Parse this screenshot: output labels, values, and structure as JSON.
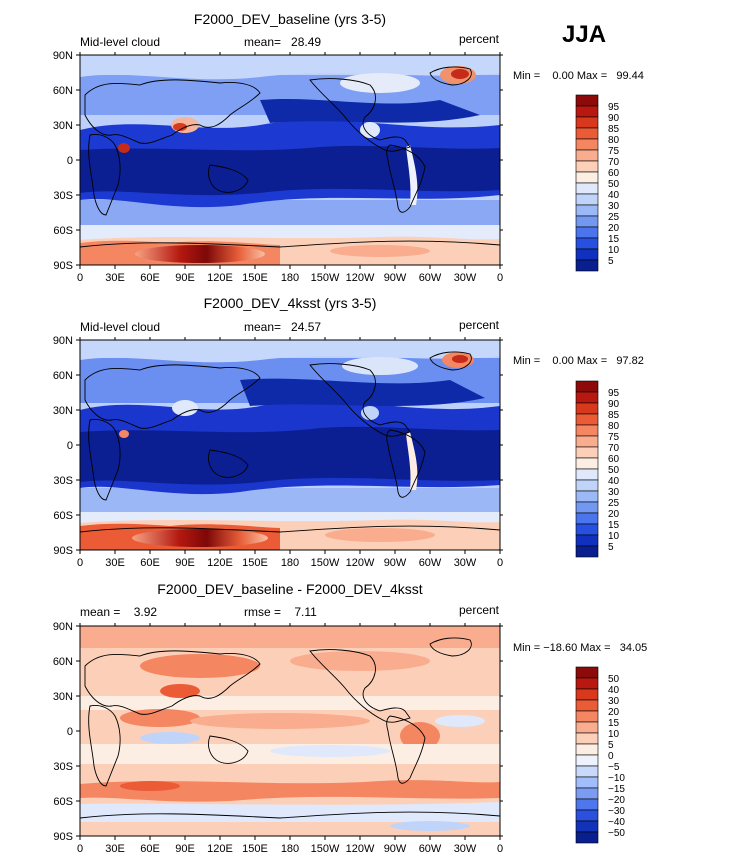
{
  "season_label": "JJA",
  "x_ticks": [
    "0",
    "30E",
    "60E",
    "90E",
    "120E",
    "150E",
    "180",
    "150W",
    "120W",
    "90W",
    "60W",
    "30W",
    "0"
  ],
  "y_ticks": [
    "90N",
    "60N",
    "30N",
    "0",
    "30S",
    "60S",
    "90S"
  ],
  "panels": [
    {
      "title": "F2000_DEV_baseline (yrs 3-5)",
      "left_label": "Mid-level cloud",
      "mean_text": "mean=   28.49",
      "right_label": "percent",
      "minmax_text": "Min =    0.00 Max =   99.44",
      "colorbar_levels": [
        "95",
        "90",
        "85",
        "80",
        "75",
        "70",
        "60",
        "50",
        "40",
        "30",
        "25",
        "20",
        "15",
        "10",
        "5"
      ],
      "colorbar_colors": [
        "#8c0a0a",
        "#b8180f",
        "#d8381c",
        "#ea5b36",
        "#f48662",
        "#f9ad8e",
        "#fcd0b8",
        "#fdeee3",
        "#dfe9fb",
        "#c0d4fa",
        "#9bb9f7",
        "#7298f2",
        "#4b75ec",
        "#2650e0",
        "#1030c0",
        "#0a1f8f"
      ]
    },
    {
      "title": "F2000_DEV_4ksst (yrs 3-5)",
      "left_label": "Mid-level cloud",
      "mean_text": "mean=   24.57",
      "right_label": "percent",
      "minmax_text": "Min =    0.00 Max =   97.82",
      "colorbar_levels": [
        "95",
        "90",
        "85",
        "80",
        "75",
        "70",
        "60",
        "50",
        "40",
        "30",
        "25",
        "20",
        "15",
        "10",
        "5"
      ],
      "colorbar_colors": [
        "#8c0a0a",
        "#b8180f",
        "#d8381c",
        "#ea5b36",
        "#f48662",
        "#f9ad8e",
        "#fcd0b8",
        "#fdeee3",
        "#dfe9fb",
        "#c0d4fa",
        "#9bb9f7",
        "#7298f2",
        "#4b75ec",
        "#2650e0",
        "#1030c0",
        "#0a1f8f"
      ]
    },
    {
      "title": "F2000_DEV_baseline - F2000_DEV_4ksst",
      "left_label": "mean =    3.92",
      "mean_text": "rmse =    7.11",
      "right_label": "percent",
      "minmax_text": "Min = −18.60 Max =   34.05",
      "colorbar_levels": [
        "50",
        "40",
        "30",
        "20",
        "15",
        "10",
        "5",
        "0",
        "−5",
        "−10",
        "−15",
        "−20",
        "−30",
        "−40",
        "−50"
      ],
      "colorbar_colors": [
        "#8c0a0a",
        "#b8180f",
        "#d8381c",
        "#ea5b36",
        "#f48662",
        "#f9ad8e",
        "#fcd0b8",
        "#fdeee3",
        "#eef2fd",
        "#c8d9fb",
        "#a2befa",
        "#7a9cf3",
        "#4f77ec",
        "#2a50dd",
        "#1232b8",
        "#0a1f8f"
      ]
    }
  ],
  "chart_data": [
    {
      "type": "heatmap",
      "title": "F2000_DEV_baseline (yrs 3-5)",
      "variable": "Mid-level cloud",
      "units": "percent",
      "mean": 28.49,
      "min": 0.0,
      "max": 99.44,
      "xlabel": "",
      "ylabel": "",
      "xlim": [
        0,
        360
      ],
      "ylim": [
        -90,
        90
      ]
    },
    {
      "type": "heatmap",
      "title": "F2000_DEV_4ksst (yrs 3-5)",
      "variable": "Mid-level cloud",
      "units": "percent",
      "mean": 24.57,
      "min": 0.0,
      "max": 97.82,
      "xlabel": "",
      "ylabel": "",
      "xlim": [
        0,
        360
      ],
      "ylim": [
        -90,
        90
      ]
    },
    {
      "type": "heatmap",
      "title": "F2000_DEV_baseline - F2000_DEV_4ksst",
      "units": "percent",
      "mean": 3.92,
      "rmse": 7.11,
      "min": -18.6,
      "max": 34.05,
      "xlabel": "",
      "ylabel": "",
      "xlim": [
        0,
        360
      ],
      "ylim": [
        -90,
        90
      ]
    }
  ]
}
